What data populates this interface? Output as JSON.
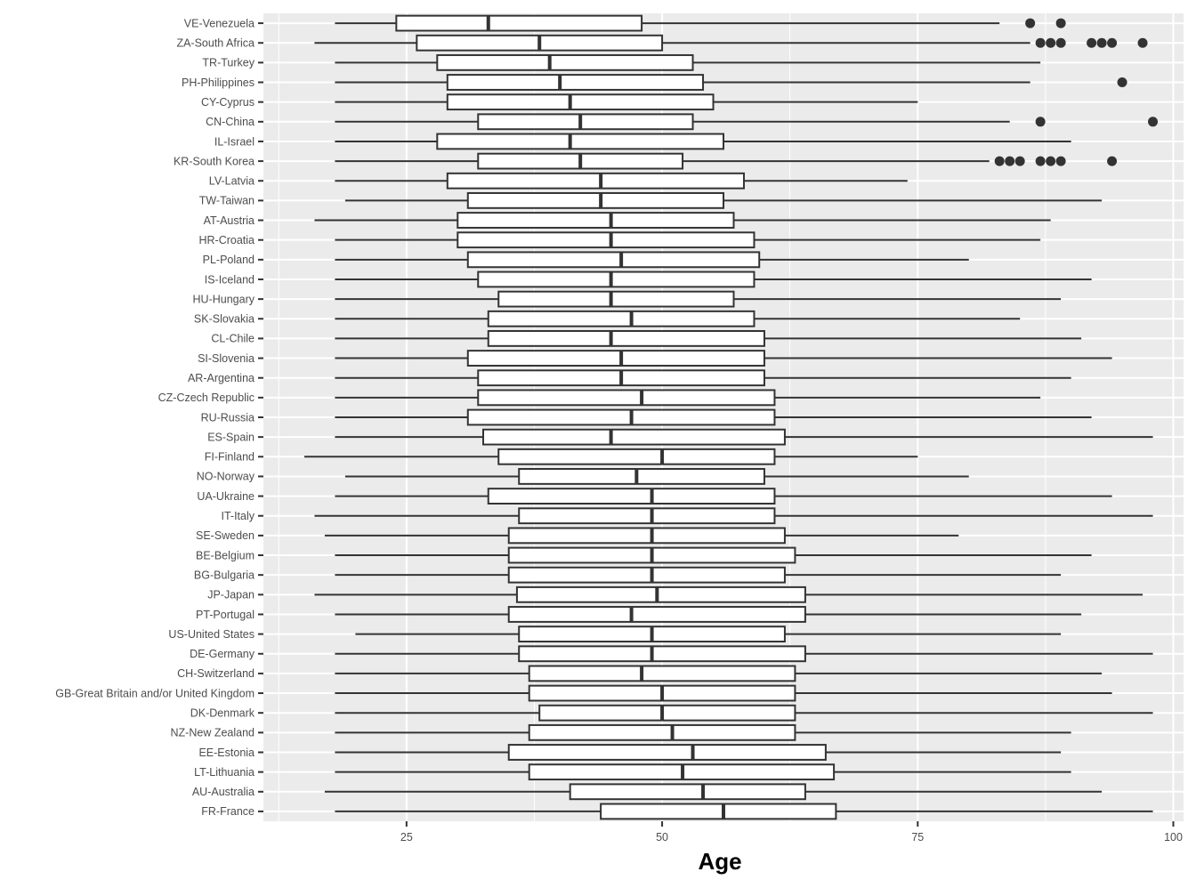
{
  "chart_data": {
    "type": "boxplot",
    "orientation": "horizontal",
    "xlabel": "Age",
    "ylabel": "",
    "xlim": [
      11,
      101
    ],
    "xticks": [
      25,
      50,
      75,
      100
    ],
    "grid": true,
    "legend": "none",
    "colors": {
      "panel": "#ebebeb",
      "grid_major": "#ffffff",
      "box_fill": "#ffffff",
      "box_stroke": "#333333",
      "outlier": "#333333"
    },
    "series": [
      {
        "category": "VE-Venezuela",
        "whisker_low": 18,
        "q1": 24,
        "median": 33,
        "q3": 48,
        "whisker_high": 83,
        "outliers": [
          86,
          89
        ]
      },
      {
        "category": "ZA-South Africa",
        "whisker_low": 16,
        "q1": 26,
        "median": 38,
        "q3": 50,
        "whisker_high": 86,
        "outliers": [
          87,
          88,
          89,
          92,
          93,
          94,
          97
        ]
      },
      {
        "category": "TR-Turkey",
        "whisker_low": 18,
        "q1": 28,
        "median": 39,
        "q3": 53,
        "whisker_high": 87,
        "outliers": []
      },
      {
        "category": "PH-Philippines",
        "whisker_low": 18,
        "q1": 29,
        "median": 40,
        "q3": 54,
        "whisker_high": 86,
        "outliers": [
          95
        ]
      },
      {
        "category": "CY-Cyprus",
        "whisker_low": 18,
        "q1": 29,
        "median": 41,
        "q3": 55,
        "whisker_high": 75,
        "outliers": []
      },
      {
        "category": "CN-China",
        "whisker_low": 18,
        "q1": 32,
        "median": 42,
        "q3": 53,
        "whisker_high": 84,
        "outliers": [
          87,
          98
        ]
      },
      {
        "category": "IL-Israel",
        "whisker_low": 18,
        "q1": 28,
        "median": 41,
        "q3": 56,
        "whisker_high": 90,
        "outliers": []
      },
      {
        "category": "KR-South Korea",
        "whisker_low": 18,
        "q1": 32,
        "median": 42,
        "q3": 52,
        "whisker_high": 82,
        "outliers": [
          83,
          84,
          85,
          87,
          88,
          89,
          94
        ]
      },
      {
        "category": "LV-Latvia",
        "whisker_low": 18,
        "q1": 29,
        "median": 44,
        "q3": 58,
        "whisker_high": 74,
        "outliers": []
      },
      {
        "category": "TW-Taiwan",
        "whisker_low": 19,
        "q1": 31,
        "median": 44,
        "q3": 56,
        "whisker_high": 93,
        "outliers": []
      },
      {
        "category": "AT-Austria",
        "whisker_low": 16,
        "q1": 30,
        "median": 45,
        "q3": 57,
        "whisker_high": 88,
        "outliers": []
      },
      {
        "category": "HR-Croatia",
        "whisker_low": 18,
        "q1": 30,
        "median": 45,
        "q3": 59,
        "whisker_high": 87,
        "outliers": []
      },
      {
        "category": "PL-Poland",
        "whisker_low": 18,
        "q1": 31,
        "median": 46,
        "q3": 59.5,
        "whisker_high": 80,
        "outliers": []
      },
      {
        "category": "IS-Iceland",
        "whisker_low": 18,
        "q1": 32,
        "median": 45,
        "q3": 59,
        "whisker_high": 92,
        "outliers": []
      },
      {
        "category": "HU-Hungary",
        "whisker_low": 18,
        "q1": 34,
        "median": 45,
        "q3": 57,
        "whisker_high": 89,
        "outliers": []
      },
      {
        "category": "SK-Slovakia",
        "whisker_low": 18,
        "q1": 33,
        "median": 47,
        "q3": 59,
        "whisker_high": 85,
        "outliers": []
      },
      {
        "category": "CL-Chile",
        "whisker_low": 18,
        "q1": 33,
        "median": 45,
        "q3": 60,
        "whisker_high": 91,
        "outliers": []
      },
      {
        "category": "SI-Slovenia",
        "whisker_low": 18,
        "q1": 31,
        "median": 46,
        "q3": 60,
        "whisker_high": 94,
        "outliers": []
      },
      {
        "category": "AR-Argentina",
        "whisker_low": 18,
        "q1": 32,
        "median": 46,
        "q3": 60,
        "whisker_high": 90,
        "outliers": []
      },
      {
        "category": "CZ-Czech Republic",
        "whisker_low": 18,
        "q1": 32,
        "median": 48,
        "q3": 61,
        "whisker_high": 87,
        "outliers": []
      },
      {
        "category": "RU-Russia",
        "whisker_low": 18,
        "q1": 31,
        "median": 47,
        "q3": 61,
        "whisker_high": 92,
        "outliers": []
      },
      {
        "category": "ES-Spain",
        "whisker_low": 18,
        "q1": 32.5,
        "median": 45,
        "q3": 62,
        "whisker_high": 98,
        "outliers": []
      },
      {
        "category": "FI-Finland",
        "whisker_low": 15,
        "q1": 34,
        "median": 50,
        "q3": 61,
        "whisker_high": 75,
        "outliers": []
      },
      {
        "category": "NO-Norway",
        "whisker_low": 19,
        "q1": 36,
        "median": 47.5,
        "q3": 60,
        "whisker_high": 80,
        "outliers": []
      },
      {
        "category": "UA-Ukraine",
        "whisker_low": 18,
        "q1": 33,
        "median": 49,
        "q3": 61,
        "whisker_high": 94,
        "outliers": []
      },
      {
        "category": "IT-Italy",
        "whisker_low": 16,
        "q1": 36,
        "median": 49,
        "q3": 61,
        "whisker_high": 98,
        "outliers": []
      },
      {
        "category": "SE-Sweden",
        "whisker_low": 17,
        "q1": 35,
        "median": 49,
        "q3": 62,
        "whisker_high": 79,
        "outliers": []
      },
      {
        "category": "BE-Belgium",
        "whisker_low": 18,
        "q1": 35,
        "median": 49,
        "q3": 63,
        "whisker_high": 92,
        "outliers": []
      },
      {
        "category": "BG-Bulgaria",
        "whisker_low": 18,
        "q1": 35,
        "median": 49,
        "q3": 62,
        "whisker_high": 89,
        "outliers": []
      },
      {
        "category": "JP-Japan",
        "whisker_low": 16,
        "q1": 35.8,
        "median": 49.5,
        "q3": 64,
        "whisker_high": 97,
        "outliers": []
      },
      {
        "category": "PT-Portugal",
        "whisker_low": 18,
        "q1": 35,
        "median": 47,
        "q3": 64,
        "whisker_high": 91,
        "outliers": []
      },
      {
        "category": "US-United States",
        "whisker_low": 20,
        "q1": 36,
        "median": 49,
        "q3": 62,
        "whisker_high": 89,
        "outliers": []
      },
      {
        "category": "DE-Germany",
        "whisker_low": 18,
        "q1": 36,
        "median": 49,
        "q3": 64,
        "whisker_high": 98,
        "outliers": []
      },
      {
        "category": "CH-Switzerland",
        "whisker_low": 18,
        "q1": 37,
        "median": 48,
        "q3": 63,
        "whisker_high": 93,
        "outliers": []
      },
      {
        "category": "GB-Great Britain and/or United Kingdom",
        "whisker_low": 18,
        "q1": 37,
        "median": 50,
        "q3": 63,
        "whisker_high": 94,
        "outliers": []
      },
      {
        "category": "DK-Denmark",
        "whisker_low": 18,
        "q1": 38,
        "median": 50,
        "q3": 63,
        "whisker_high": 98,
        "outliers": []
      },
      {
        "category": "NZ-New Zealand",
        "whisker_low": 18,
        "q1": 37,
        "median": 51,
        "q3": 63,
        "whisker_high": 90,
        "outliers": []
      },
      {
        "category": "EE-Estonia",
        "whisker_low": 18,
        "q1": 35,
        "median": 53,
        "q3": 66,
        "whisker_high": 89,
        "outliers": []
      },
      {
        "category": "LT-Lithuania",
        "whisker_low": 18,
        "q1": 37,
        "median": 52,
        "q3": 66.8,
        "whisker_high": 90,
        "outliers": []
      },
      {
        "category": "AU-Australia",
        "whisker_low": 17,
        "q1": 41,
        "median": 54,
        "q3": 64,
        "whisker_high": 93,
        "outliers": []
      },
      {
        "category": "FR-France",
        "whisker_low": 18,
        "q1": 44,
        "median": 56,
        "q3": 67,
        "whisker_high": 98,
        "outliers": []
      }
    ]
  }
}
